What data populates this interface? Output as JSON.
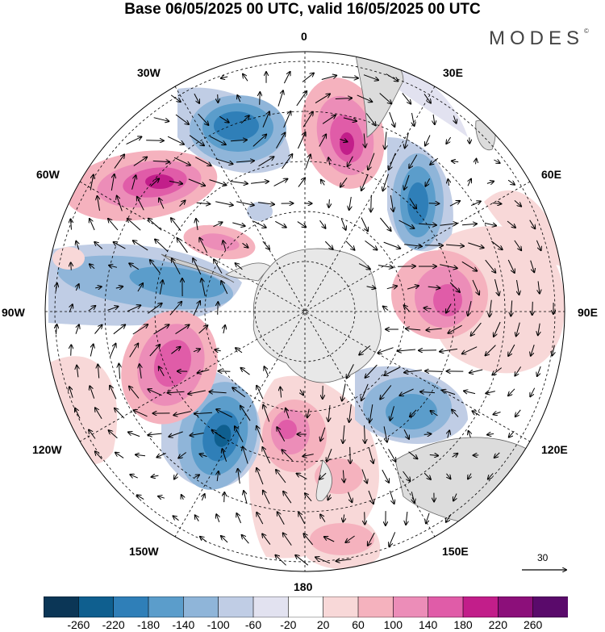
{
  "title": "Base 06/05/2025 00 UTC, valid 16/05/2025 00 UTC",
  "brand": "MODES",
  "brand_mark": "©",
  "longitude_labels": {
    "lon_0": "0",
    "lon_30e": "30E",
    "lon_60e": "60E",
    "lon_90e": "90E",
    "lon_120e": "120E",
    "lon_150e": "150E",
    "lon_180": "180",
    "lon_150w": "150W",
    "lon_120w": "120W",
    "lon_90w": "90W",
    "lon_60w": "60W",
    "lon_30w": "30W"
  },
  "vector_key": {
    "value": "30"
  },
  "colorbar": {
    "tick_labels": [
      "-260",
      "-220",
      "-180",
      "-140",
      "-100",
      "-60",
      "-20",
      "20",
      "60",
      "100",
      "140",
      "180",
      "220",
      "260"
    ],
    "colors": [
      "#0b3656",
      "#0f5f8f",
      "#2f7fb8",
      "#5b9dcb",
      "#8fb5d9",
      "#c0cde5",
      "#e2e2f0",
      "#ffffff",
      "#f8d8d8",
      "#f5b2be",
      "#ec8db8",
      "#e05ca8",
      "#c21e8a",
      "#8c0f7a",
      "#5a0a6b"
    ]
  },
  "colors": {
    "land": "#e8e8e8",
    "coast": "#666666",
    "grid": "#000000"
  }
}
